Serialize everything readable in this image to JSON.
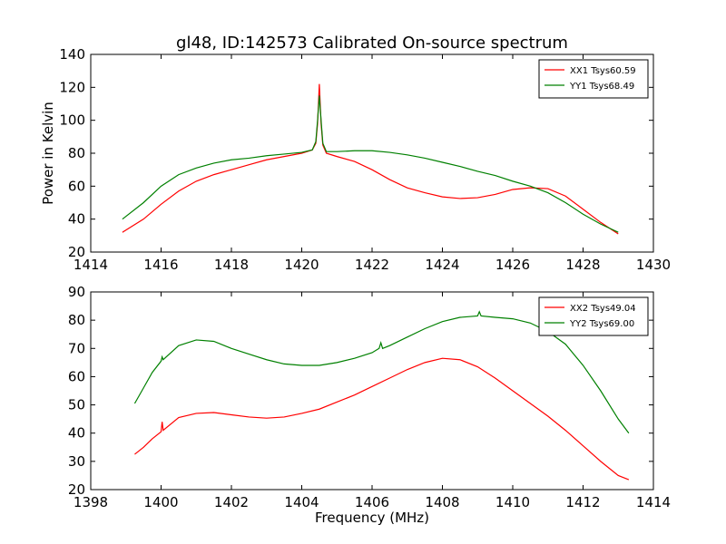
{
  "figure": {
    "title": "gl48, ID:142573 Calibrated On-source spectrum"
  },
  "chart_data": [
    {
      "type": "line",
      "title": "gl48, ID:142573 Calibrated On-source spectrum",
      "xlabel": "",
      "ylabel": "Power in Kelvin",
      "xlim": [
        1414,
        1430
      ],
      "ylim": [
        20,
        140
      ],
      "xticks": [
        "1414",
        "1416",
        "1418",
        "1420",
        "1422",
        "1424",
        "1426",
        "1428",
        "1430"
      ],
      "yticks": [
        "20",
        "40",
        "60",
        "80",
        "100",
        "120",
        "140"
      ],
      "grid": false,
      "legend_position": "top-right",
      "series": [
        {
          "name": "XX1 Tsys60.59",
          "color": "#ff0000",
          "x": [
            1414.9,
            1415.5,
            1416,
            1416.5,
            1417,
            1417.5,
            1418,
            1418.5,
            1419,
            1419.5,
            1420,
            1420.3,
            1420.4,
            1420.45,
            1420.5,
            1420.55,
            1420.6,
            1420.7,
            1421,
            1421.5,
            1422,
            1422.5,
            1423,
            1423.5,
            1424,
            1424.5,
            1425,
            1425.5,
            1426,
            1426.5,
            1427,
            1427.5,
            1428,
            1428.5,
            1429
          ],
          "y": [
            32,
            40,
            49,
            57,
            63,
            67,
            70,
            73,
            76,
            78,
            80,
            82,
            86,
            98,
            122,
            98,
            85,
            80,
            78,
            75,
            70,
            64,
            59,
            56,
            53.5,
            52.5,
            53,
            55,
            58,
            59,
            58.5,
            54,
            46,
            38,
            31
          ]
        },
        {
          "name": "YY1 Tsys68.49",
          "color": "#008000",
          "x": [
            1414.9,
            1415.5,
            1416,
            1416.5,
            1417,
            1417.5,
            1418,
            1418.5,
            1419,
            1419.5,
            1420,
            1420.3,
            1420.4,
            1420.45,
            1420.5,
            1420.55,
            1420.6,
            1420.7,
            1421,
            1421.5,
            1422,
            1422.5,
            1423,
            1423.5,
            1424,
            1424.5,
            1425,
            1425.5,
            1426,
            1426.5,
            1427,
            1427.5,
            1428,
            1428.5,
            1429
          ],
          "y": [
            40,
            50,
            60,
            67,
            71,
            74,
            76,
            77,
            78.5,
            79.5,
            80.5,
            82,
            87,
            100,
            115,
            100,
            86,
            81,
            81,
            81.5,
            81.5,
            80.5,
            79,
            77,
            74.5,
            72,
            69,
            66.5,
            63,
            60,
            56,
            50,
            43,
            37,
            32
          ]
        }
      ]
    },
    {
      "type": "line",
      "title": "",
      "xlabel": "Frequency (MHz)",
      "ylabel": "",
      "xlim": [
        1398,
        1414
      ],
      "ylim": [
        20,
        90
      ],
      "xticks": [
        "1398",
        "1400",
        "1402",
        "1404",
        "1406",
        "1408",
        "1410",
        "1412",
        "1414"
      ],
      "yticks": [
        "20",
        "30",
        "40",
        "50",
        "60",
        "70",
        "80",
        "90"
      ],
      "grid": false,
      "legend_position": "top-right",
      "series": [
        {
          "name": "XX2 Tsys49.04",
          "color": "#ff0000",
          "x": [
            1399.25,
            1399.5,
            1399.75,
            1400,
            1400.03,
            1400.06,
            1400.5,
            1401,
            1401.5,
            1402,
            1402.5,
            1403,
            1403.5,
            1404,
            1404.5,
            1405,
            1405.5,
            1406,
            1406.5,
            1407,
            1407.5,
            1408,
            1408.5,
            1409,
            1409.5,
            1410,
            1410.5,
            1411,
            1411.5,
            1412,
            1412.5,
            1413,
            1413.3
          ],
          "y": [
            32.5,
            35,
            38,
            40.5,
            44,
            41,
            45.5,
            47,
            47.3,
            46.5,
            45.7,
            45.3,
            45.7,
            47,
            48.5,
            51,
            53.5,
            56.5,
            59.5,
            62.5,
            65,
            66.5,
            66,
            63.5,
            59.5,
            55,
            50.5,
            46,
            41,
            35.5,
            30,
            25,
            23.5
          ]
        },
        {
          "name": "YY2 Tsys69.00",
          "color": "#008000",
          "x": [
            1399.25,
            1399.5,
            1399.75,
            1400,
            1400.03,
            1400.06,
            1400.5,
            1401,
            1401.5,
            1402,
            1402.5,
            1403,
            1403.5,
            1404,
            1404.5,
            1405,
            1405.5,
            1406,
            1406.2,
            1406.25,
            1406.3,
            1406.5,
            1407,
            1407.5,
            1408,
            1408.5,
            1409,
            1409.05,
            1409.1,
            1409.5,
            1410,
            1410.5,
            1411,
            1411.5,
            1412,
            1412.5,
            1413,
            1413.3
          ],
          "y": [
            50.5,
            56,
            61.5,
            65.5,
            67,
            66,
            71,
            73,
            72.5,
            70,
            68,
            66,
            64.5,
            64,
            64,
            65,
            66.5,
            68.5,
            70,
            72,
            70,
            71,
            74,
            77,
            79.5,
            81,
            81.5,
            83,
            81.5,
            81,
            80.5,
            79,
            76,
            71.5,
            64,
            55,
            45,
            40
          ]
        }
      ]
    }
  ]
}
